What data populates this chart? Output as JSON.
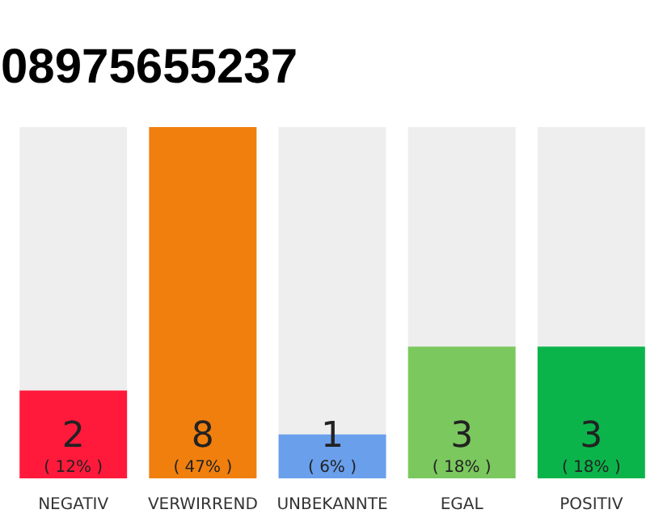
{
  "chart_data": {
    "type": "bar",
    "title": "08975655237",
    "categories": [
      "NEGATIV",
      "VERWIRREND",
      "UNBEKANNTE",
      "EGAL",
      "POSITIV"
    ],
    "values": [
      2,
      8,
      1,
      3,
      3
    ],
    "colors": [
      "#ff1a3c",
      "#f07f0e",
      "#6a9fec",
      "#7bc85f",
      "#0bb44a"
    ],
    "data_labels": true,
    "annotations": [
      "( 12% )",
      "( 47% )",
      "( 6% )",
      "( 18% )",
      "( 18% )"
    ],
    "tick_labels": "x"
  }
}
